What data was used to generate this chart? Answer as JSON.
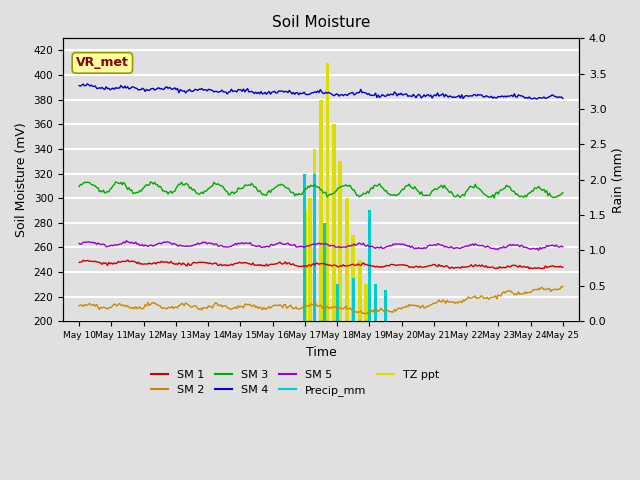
{
  "title": "Soil Moisture",
  "xlabel": "Time",
  "ylabel_left": "Soil Moisture (mV)",
  "ylabel_right": "Rain (mm)",
  "ylim_left": [
    200,
    430
  ],
  "ylim_right": [
    0.0,
    4.0
  ],
  "yticks_left": [
    200,
    220,
    240,
    260,
    280,
    300,
    320,
    340,
    360,
    380,
    400,
    420
  ],
  "yticks_right": [
    0.0,
    0.5,
    1.0,
    1.5,
    2.0,
    2.5,
    3.0,
    3.5,
    4.0
  ],
  "xtick_labels": [
    "May 10",
    "May 11",
    "May 12",
    "May 13",
    "May 14",
    "May 15",
    "May 16",
    "May 17",
    "May 18",
    "May 19",
    "May 20",
    "May 21",
    "May 22",
    "May 23",
    "May 24",
    "May 25"
  ],
  "background_color": "#e0e0e0",
  "plot_bg_color": "#e0e0e0",
  "grid_color": "#ffffff",
  "annotation_text": "VR_met",
  "annotation_box_color": "#ffffa0",
  "annotation_text_color": "#8b0000",
  "colors": {
    "sm1": "#cc0000",
    "sm2": "#cc8800",
    "sm3": "#00aa00",
    "sm4": "#0000cc",
    "sm5": "#9900cc",
    "precip": "#00cccc",
    "tz_ppt": "#dddd00"
  },
  "tz_times": [
    7.0,
    7.15,
    7.3,
    7.5,
    7.7,
    7.9,
    8.1,
    8.3,
    8.5,
    8.7,
    8.9
  ],
  "tz_heights": [
    290,
    300,
    340,
    380,
    410,
    360,
    330,
    300,
    270,
    250,
    230
  ],
  "precip_times": [
    7.0,
    7.3,
    7.6,
    8.0,
    8.5,
    9.0,
    9.2,
    9.5
  ],
  "precip_heights": [
    320,
    320,
    280,
    230,
    235,
    290,
    230,
    225
  ]
}
